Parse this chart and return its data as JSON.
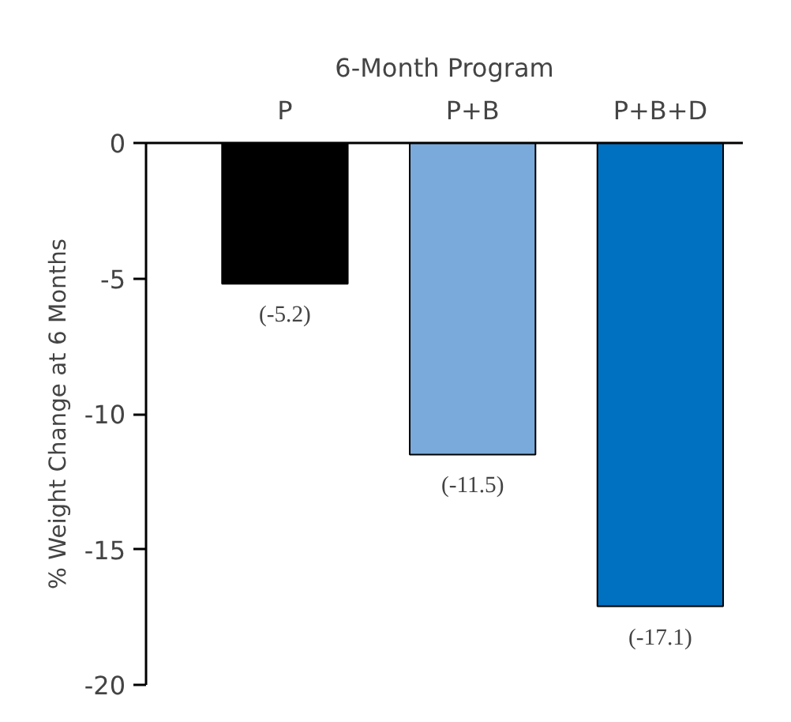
{
  "chart_data": {
    "type": "bar",
    "xlabel": "6-Month Program",
    "ylabel": "% Weight Change at 6 Months",
    "categories": [
      "P",
      "P+B",
      "P+B+D"
    ],
    "values": [
      -5.2,
      -11.5,
      -17.1
    ],
    "colors": [
      "#000000",
      "#7aaadb",
      "#0070c0"
    ],
    "value_labels": [
      "(-5.2)",
      "(-11.5)",
      "(-17.1)"
    ],
    "ylim": [
      -20,
      0
    ],
    "yticks": [
      0,
      -5,
      -10,
      -15,
      -20
    ],
    "grid": false
  }
}
